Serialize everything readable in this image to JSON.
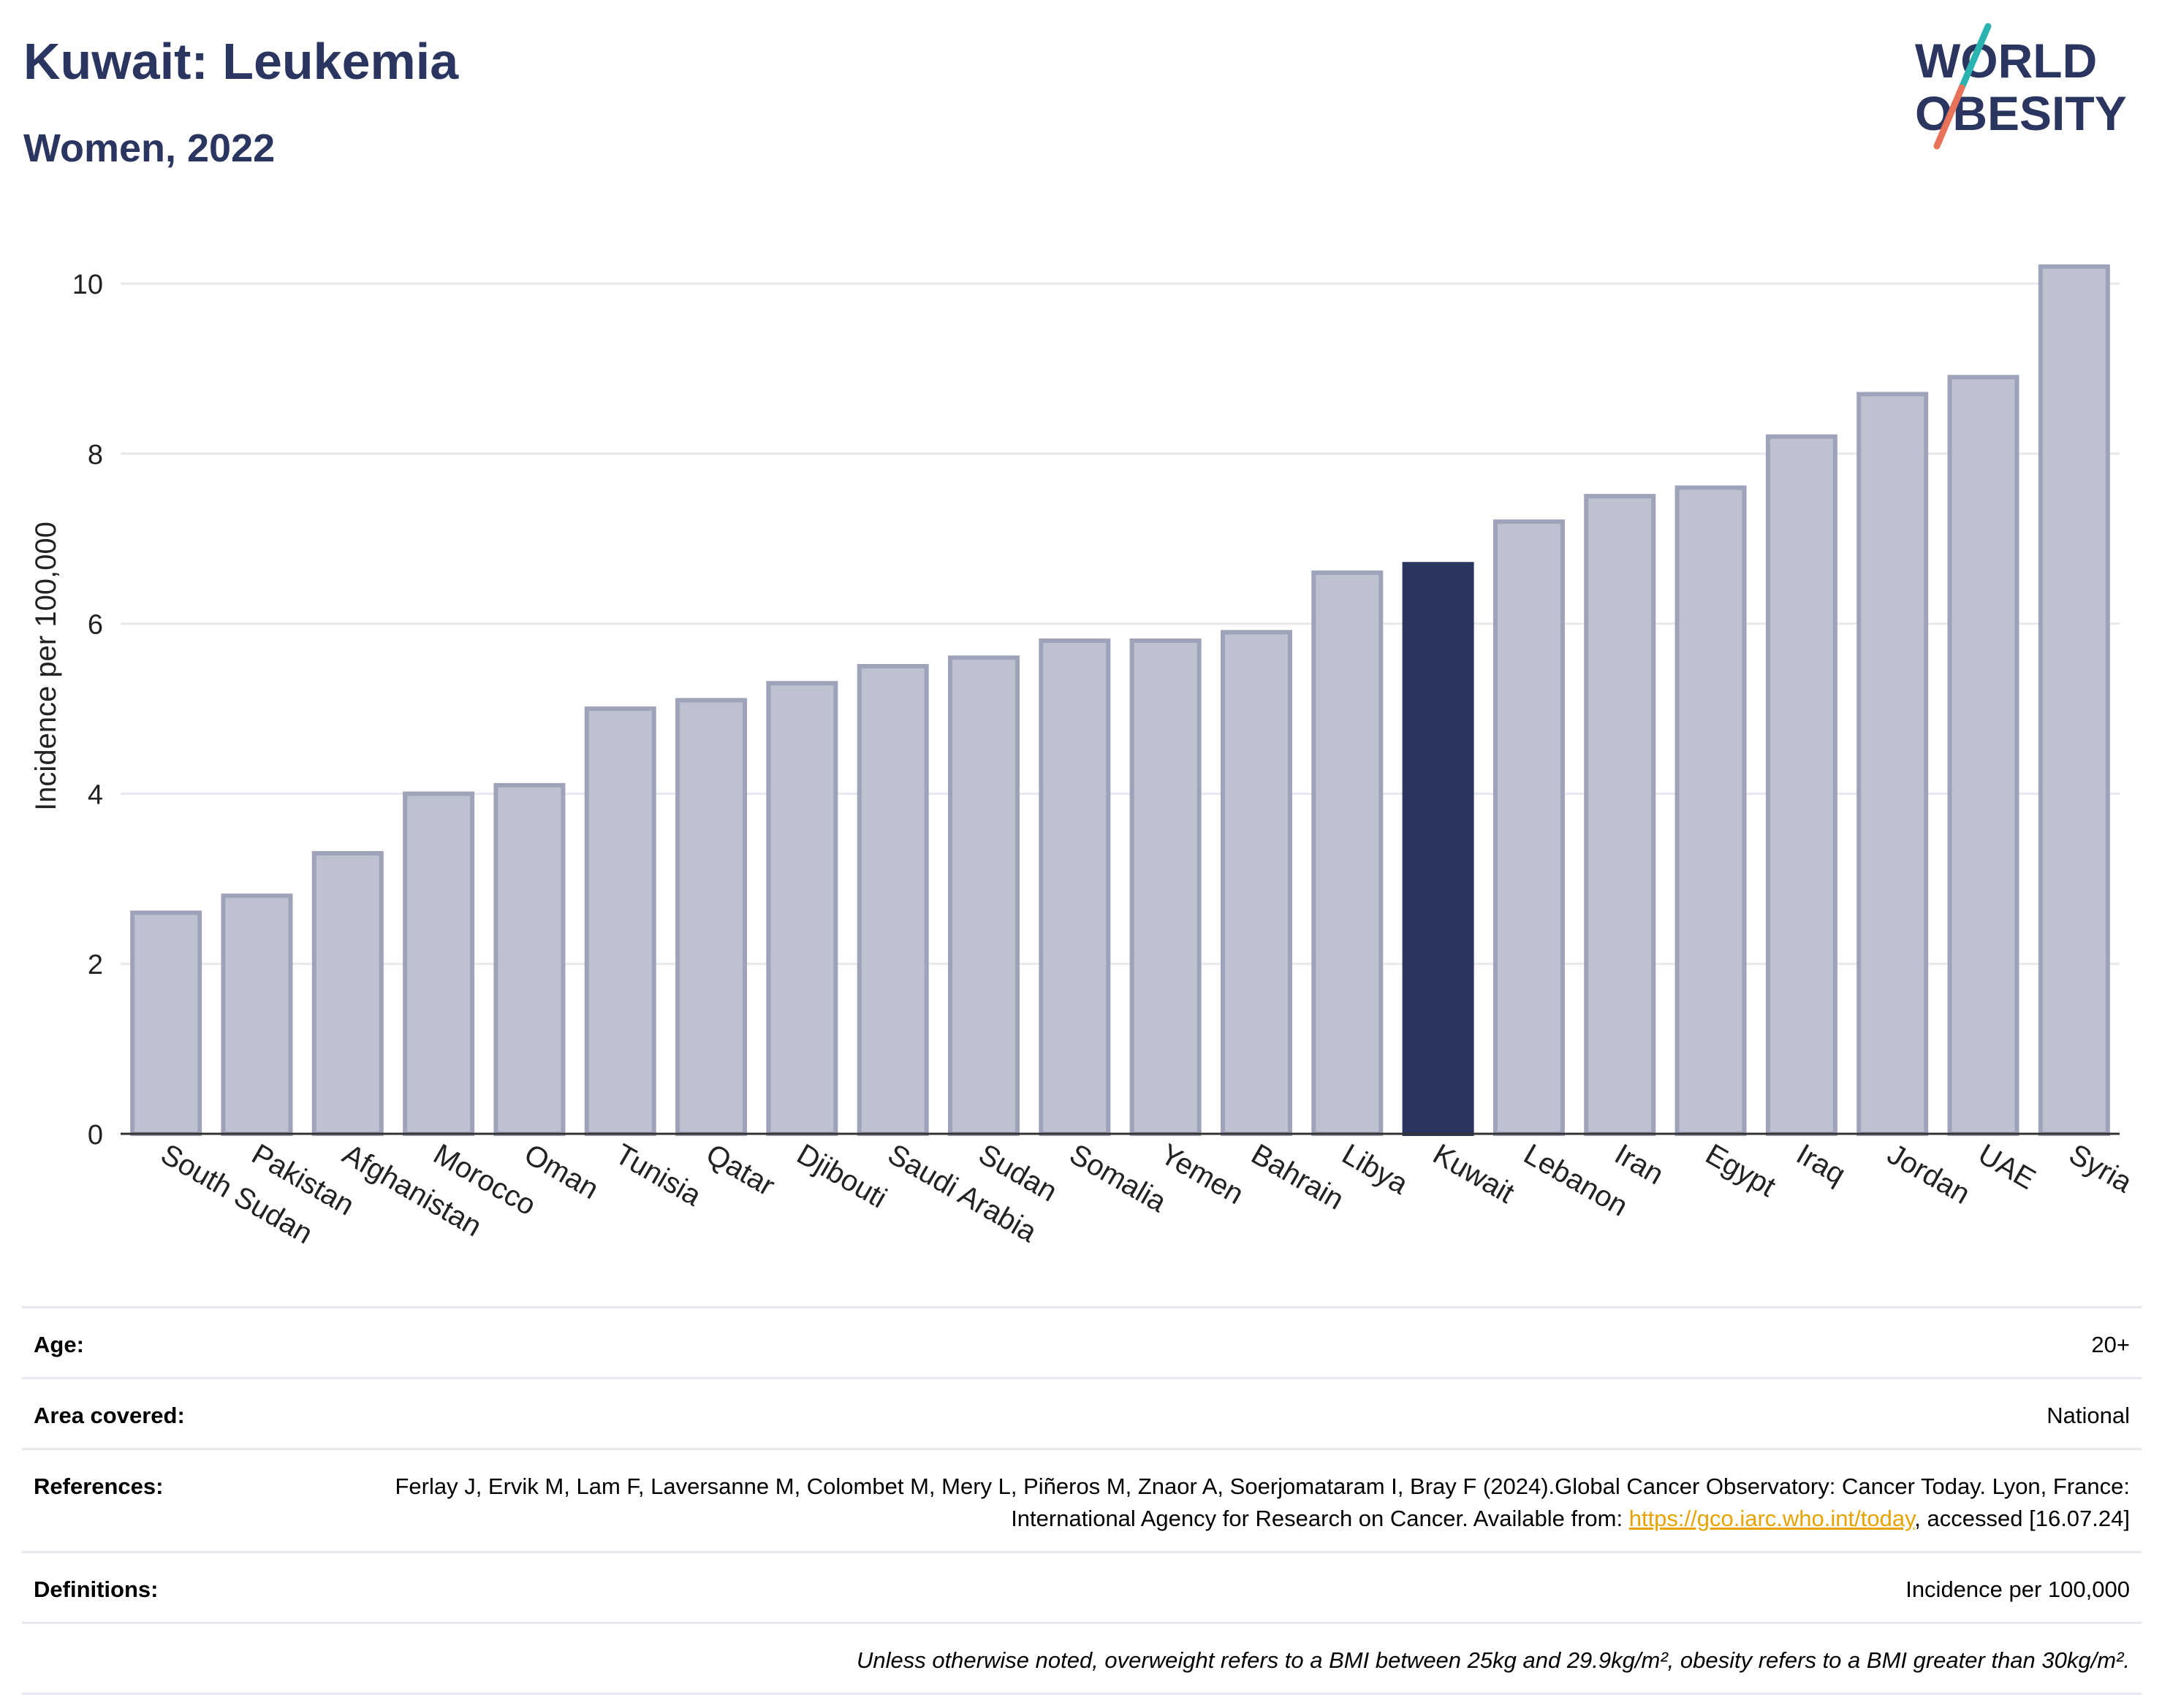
{
  "header": {
    "title": "Kuwait: Leukemia",
    "subtitle": "Women, 2022"
  },
  "logo": {
    "line1": "WORLD",
    "line2": "OBESITY",
    "colors": {
      "text": "#2a3560",
      "slash_teal": "#2bb3b1",
      "slash_coral": "#e8735a"
    }
  },
  "chart_data": {
    "type": "bar",
    "categories": [
      "South Sudan",
      "Pakistan",
      "Afghanistan",
      "Morocco",
      "Oman",
      "Tunisia",
      "Qatar",
      "Djibouti",
      "Saudi Arabia",
      "Sudan",
      "Somalia",
      "Yemen",
      "Bahrain",
      "Libya",
      "Kuwait",
      "Lebanon",
      "Iran",
      "Egypt",
      "Iraq",
      "Jordan",
      "UAE",
      "Syria"
    ],
    "values": [
      2.6,
      2.8,
      3.3,
      4.0,
      4.1,
      5.0,
      5.1,
      5.3,
      5.5,
      5.6,
      5.8,
      5.8,
      5.9,
      6.6,
      6.7,
      7.2,
      7.5,
      7.6,
      8.2,
      8.7,
      8.9,
      10.2
    ],
    "highlight": "Kuwait",
    "ylabel": "Incidence per 100,000",
    "ylim": [
      0,
      10.5
    ],
    "yticks": [
      0,
      2,
      4,
      6,
      8,
      10
    ],
    "grid": true,
    "colors": {
      "bar": "#bec1cf",
      "bar_edge": "#9ea3ba",
      "highlight": "#2a3560",
      "grid": "#e8e9ee"
    }
  },
  "meta": [
    {
      "label": "Age:",
      "value": "20+"
    },
    {
      "label": "Area covered:",
      "value": "National"
    },
    {
      "label": "References:",
      "value_pre": "Ferlay J, Ervik M, Lam F, Laversanne M, Colombet M, Mery L, Piñeros M, Znaor A, Soerjomataram I, Bray F (2024).Global Cancer Observatory: Cancer Today. Lyon, France: International Agency for Research on Cancer. Available from: ",
      "link": "https://gco.iarc.who.int/today",
      "value_post": ", accessed [16.07.24]"
    },
    {
      "label": "Definitions:",
      "value": "Incidence per 100,000"
    }
  ],
  "note": "Unless otherwise noted, overweight refers to a BMI between 25kg and 29.9kg/m², obesity refers to a BMI greater than 30kg/m²."
}
